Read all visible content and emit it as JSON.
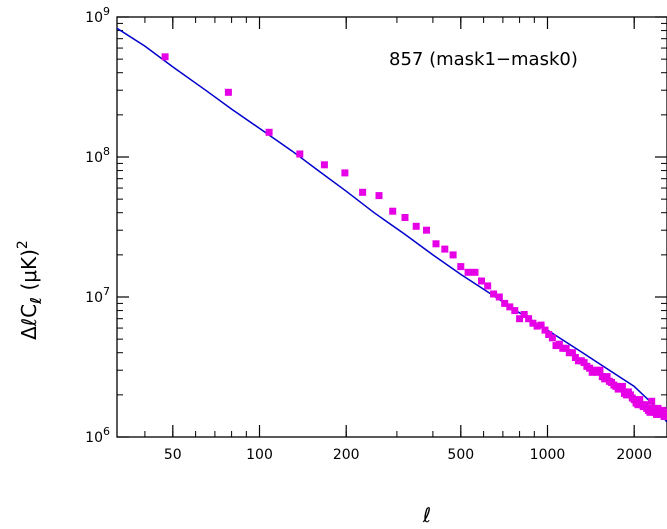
{
  "chart_data": {
    "type": "scatter",
    "title": "",
    "annotation": "857 (mask1−mask0)",
    "xlabel": "ℓ",
    "ylabel": {
      "prefix": "ΔℓC",
      "subscript": "ℓ",
      "suffix": "  (μK)",
      "superscript": "2"
    },
    "x_scale": "log",
    "y_scale": "log",
    "xlim": [
      32,
      2600
    ],
    "ylim": [
      1000000,
      1000000000
    ],
    "x_ticks": [
      {
        "value": 50,
        "label": "50"
      },
      {
        "value": 100,
        "label": "100"
      },
      {
        "value": 200,
        "label": "200"
      },
      {
        "value": 500,
        "label": "500"
      },
      {
        "value": 1000,
        "label": "1000"
      },
      {
        "value": 2000,
        "label": "2000"
      }
    ],
    "y_ticks": [
      {
        "value": 1000000,
        "base": "10",
        "exp": "6"
      },
      {
        "value": 10000000,
        "base": "10",
        "exp": "7"
      },
      {
        "value": 100000000,
        "base": "10",
        "exp": "8"
      },
      {
        "value": 1000000000,
        "base": "10",
        "exp": "9"
      }
    ],
    "grid": false,
    "colors": {
      "points": "#e600e6",
      "fit_line": "#0000cc",
      "axes": "#000000"
    },
    "series": [
      {
        "kind": "points",
        "x": [
          47,
          78,
          108,
          138,
          168,
          198,
          228,
          260,
          290,
          320,
          350,
          380,
          410,
          440,
          470,
          500,
          530,
          560,
          590,
          620,
          650,
          680,
          710,
          740,
          770,
          800,
          830,
          860,
          890,
          920,
          950,
          980,
          1010,
          1040,
          1070,
          1100,
          1130,
          1160,
          1190,
          1220,
          1250,
          1280,
          1310,
          1340,
          1370,
          1400,
          1430,
          1460,
          1490,
          1520,
          1550,
          1580,
          1610,
          1640,
          1670,
          1700,
          1730,
          1760,
          1790,
          1820,
          1850,
          1880,
          1910,
          1940,
          1970,
          2000,
          2030,
          2060,
          2090,
          2120,
          2150,
          2180,
          2210,
          2240,
          2270,
          2300,
          2330,
          2360,
          2390,
          2420,
          2450,
          2480,
          2510,
          2540,
          2570
        ],
        "y": [
          520000000,
          290000000,
          150000000,
          105000000,
          88000000,
          77000000,
          56000000,
          53000000,
          41000000,
          37000000,
          32000000,
          30000000,
          24000000,
          22000000,
          20000000,
          16500000,
          15000000,
          15000000,
          13000000,
          12000000,
          10500000,
          10000000,
          9000000,
          8500000,
          8000000,
          7000000,
          7500000,
          7000000,
          6500000,
          6200000,
          6300000,
          5800000,
          5400000,
          5100000,
          4500000,
          4600000,
          4300000,
          4300000,
          4000000,
          4000000,
          3700000,
          3500000,
          3500000,
          3400000,
          3200000,
          3100000,
          2900000,
          3000000,
          2900000,
          3000000,
          2700000,
          2600000,
          2700000,
          2500000,
          2450000,
          2350000,
          2300000,
          2200000,
          2250000,
          2300000,
          2050000,
          2000000,
          2100000,
          2000000,
          1900000,
          1850000,
          1750000,
          1700000,
          1850000,
          1700000,
          1650000,
          1700000,
          1600000,
          1550000,
          1500000,
          1800000,
          1600000,
          1500000,
          1450000,
          1600000,
          1450000,
          1500000,
          1550000,
          1400000,
          1500000
        ]
      },
      {
        "kind": "line",
        "x": [
          32,
          40,
          50,
          65,
          80,
          100,
          130,
          160,
          200,
          250,
          320,
          400,
          500,
          650,
          800,
          1000,
          1300,
          1600,
          2000,
          2300,
          2600
        ],
        "y": [
          830000000,
          620000000,
          440000000,
          300000000,
          220000000,
          160000000,
          110000000,
          80000000,
          57000000,
          40000000,
          28000000,
          20000000,
          14500000,
          10200000,
          7700000,
          5800000,
          4100000,
          3100000,
          2300000,
          1750000,
          1280000
        ]
      }
    ]
  }
}
